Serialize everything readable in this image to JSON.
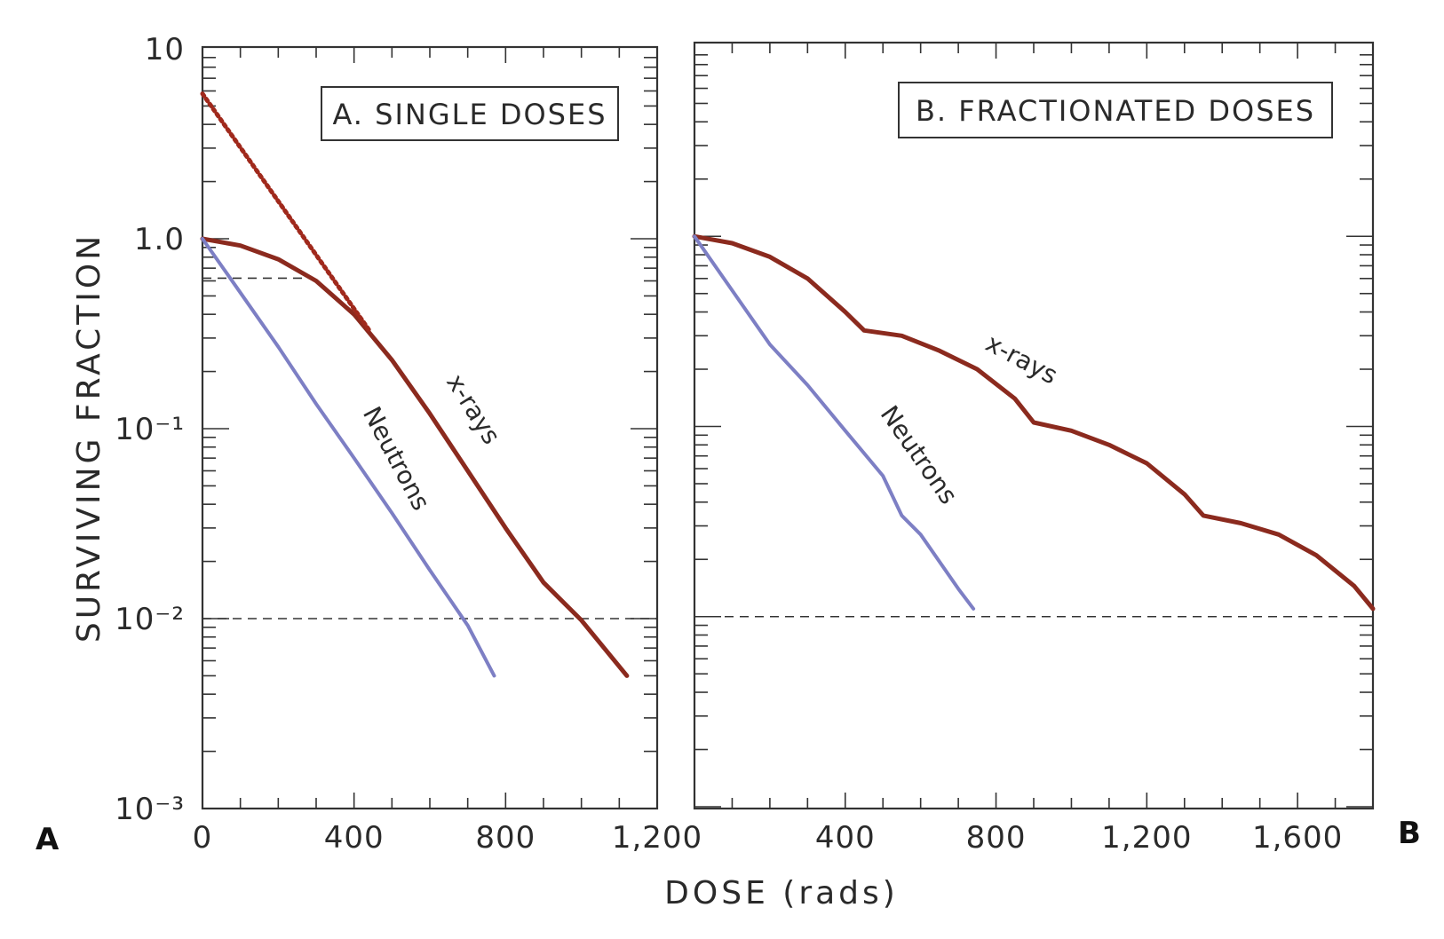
{
  "figure": {
    "y_axis_label": "SURVIVING FRACTION",
    "x_axis_label": "DOSE (rads)",
    "y_tick_labels": [
      "10",
      "1.0",
      "10⁻¹",
      "10⁻²",
      "10⁻³"
    ],
    "colors": {
      "x_rays": "#8b2a1e",
      "neutrons": "#7d7fc4",
      "extrapolation": "#a0291c"
    }
  },
  "chart_data": [
    {
      "type": "line",
      "panel_letter": "A",
      "title": "A. SINGLE DOSES",
      "xlabel": "DOSE (rads)",
      "ylabel": "SURVIVING FRACTION",
      "y_scale": "log",
      "xlim": [
        0,
        1200
      ],
      "ylim": [
        0.001,
        10
      ],
      "x_ticks": [
        0,
        400,
        800,
        1200
      ],
      "x_tick_labels": [
        "0",
        "400",
        "800",
        "1,200"
      ],
      "grid": false,
      "series": [
        {
          "name": "x-rays",
          "x": [
            0,
            100,
            200,
            300,
            400,
            500,
            600,
            700,
            800,
            900,
            1000,
            1120
          ],
          "y": [
            1.0,
            0.92,
            0.78,
            0.6,
            0.4,
            0.23,
            0.12,
            0.06,
            0.03,
            0.0155,
            0.0098,
            0.005
          ]
        },
        {
          "name": "Neutrons",
          "x": [
            0,
            100,
            200,
            300,
            400,
            500,
            600,
            700,
            770
          ],
          "y": [
            1.0,
            0.52,
            0.27,
            0.135,
            0.07,
            0.036,
            0.018,
            0.0092,
            0.005
          ]
        },
        {
          "name": "",
          "style": "dotted extrapolation",
          "x": [
            0,
            440
          ],
          "y": [
            5.8,
            0.33
          ]
        }
      ],
      "reference_lines": [
        {
          "y": 0.01,
          "style": "dashed"
        },
        {
          "y": 0.62,
          "x_range": [
            0,
            270
          ],
          "style": "dash-dot"
        }
      ]
    },
    {
      "type": "line",
      "panel_letter": "B",
      "title": "B. FRACTIONATED DOSES",
      "xlabel": "DOSE (rads)",
      "ylabel": "SURVIVING FRACTION",
      "y_scale": "log",
      "xlim": [
        0,
        1800
      ],
      "ylim": [
        0.001,
        10
      ],
      "x_ticks": [
        400,
        800,
        1200,
        1600
      ],
      "x_tick_labels": [
        "400",
        "800",
        "1,200",
        "1,600"
      ],
      "grid": false,
      "series": [
        {
          "name": "x-rays",
          "x": [
            0,
            100,
            200,
            300,
            400,
            450,
            550,
            650,
            750,
            850,
            900,
            1000,
            1100,
            1200,
            1300,
            1350,
            1450,
            1550,
            1650,
            1750,
            1800
          ],
          "y": [
            1.0,
            0.92,
            0.78,
            0.6,
            0.4,
            0.32,
            0.3,
            0.25,
            0.2,
            0.14,
            0.105,
            0.095,
            0.08,
            0.064,
            0.044,
            0.034,
            0.031,
            0.027,
            0.021,
            0.0145,
            0.011
          ]
        },
        {
          "name": "Neutrons",
          "x": [
            0,
            100,
            200,
            300,
            400,
            500,
            550,
            600,
            700,
            740
          ],
          "y": [
            1.0,
            0.52,
            0.27,
            0.165,
            0.095,
            0.055,
            0.034,
            0.027,
            0.014,
            0.011
          ]
        }
      ],
      "reference_lines": [
        {
          "y": 0.01,
          "style": "dashed"
        }
      ]
    }
  ]
}
